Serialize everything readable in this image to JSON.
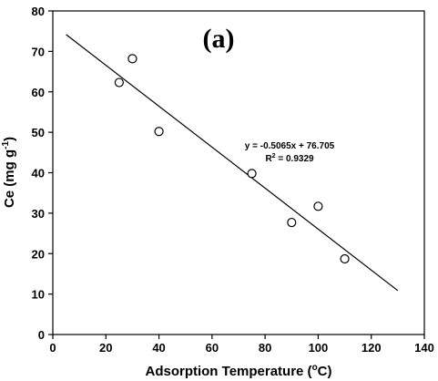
{
  "chart_data": {
    "type": "scatter",
    "panel_label": "(a)",
    "xlabel": "Adsorption Temperature (",
    "xlabel_sup": "o",
    "xlabel_end": "C)",
    "ylabel": "Ce (mg g",
    "ylabel_sup": "-1",
    "ylabel_end": ")",
    "xlim": [
      0,
      140
    ],
    "ylim": [
      0,
      80
    ],
    "x_ticks": [
      "0",
      "20",
      "40",
      "60",
      "80",
      "100",
      "120",
      "140"
    ],
    "y_ticks": [
      "0",
      "10",
      "20",
      "30",
      "40",
      "50",
      "60",
      "70",
      "80"
    ],
    "points": [
      {
        "x": 25,
        "y": 62.3
      },
      {
        "x": 30,
        "y": 68.2
      },
      {
        "x": 40,
        "y": 50.2
      },
      {
        "x": 75,
        "y": 39.8
      },
      {
        "x": 90,
        "y": 27.7
      },
      {
        "x": 100,
        "y": 31.7
      },
      {
        "x": 110,
        "y": 18.7
      }
    ],
    "trendline": {
      "slope": -0.5065,
      "intercept": 76.705,
      "x_start": 5,
      "x_end": 130
    },
    "equation_text": "y = -0.5065x + 76.705",
    "r2_prefix": "R",
    "r2_sup": "2",
    "r2_value": " = 0.9329",
    "grid": false,
    "legend": "none"
  }
}
